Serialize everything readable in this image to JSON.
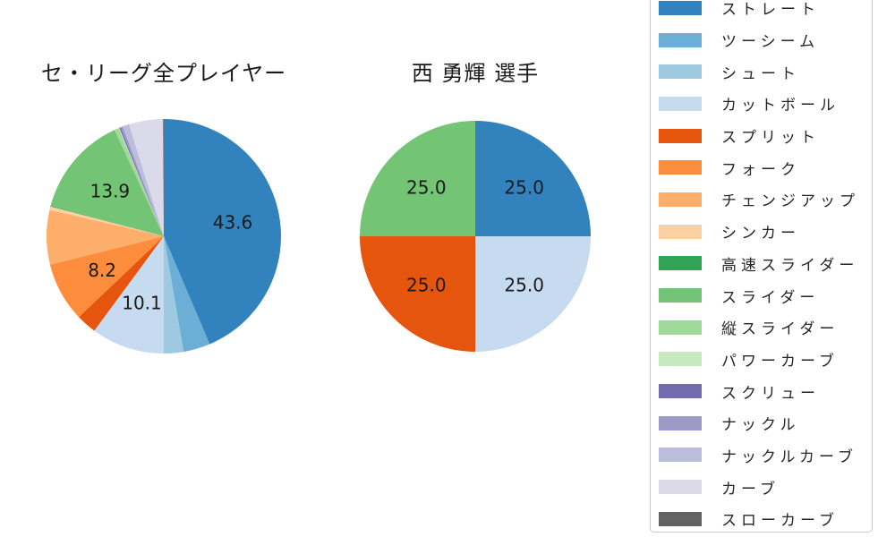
{
  "figure": {
    "background": "#ffffff"
  },
  "chart_data": [
    {
      "type": "pie",
      "title": "セ・リーグ全プレイヤー",
      "start_angle": "top",
      "direction": "clockwise",
      "label_threshold_pct": 8,
      "value_label_format": "one_decimal",
      "slices": [
        {
          "label": "ストレート",
          "value": 43.6,
          "color": "#3182bd"
        },
        {
          "label": "ツーシーム",
          "value": 3.7,
          "color": "#6baed6"
        },
        {
          "label": "シュート",
          "value": 2.7,
          "color": "#9ecae1"
        },
        {
          "label": "カットボール",
          "value": 10.1,
          "color": "#c6dbef"
        },
        {
          "label": "スプリット",
          "value": 2.8,
          "color": "#e6550d"
        },
        {
          "label": "フォーク",
          "value": 8.2,
          "color": "#fd8d3c"
        },
        {
          "label": "チェンジアップ",
          "value": 7.5,
          "color": "#fdae6b"
        },
        {
          "label": "シンカー",
          "value": 0.5,
          "color": "#fdd0a2"
        },
        {
          "label": "高速スライダー",
          "value": 0.1,
          "color": "#31a354"
        },
        {
          "label": "スライダー",
          "value": 13.9,
          "color": "#74c476"
        },
        {
          "label": "縦スライダー",
          "value": 0.6,
          "color": "#a1d99b"
        },
        {
          "label": "パワーカーブ",
          "value": 0.1,
          "color": "#c7e9c0"
        },
        {
          "label": "スクリュー",
          "value": 0.2,
          "color": "#756bb1"
        },
        {
          "label": "ナックル",
          "value": 0.3,
          "color": "#9e9ac8"
        },
        {
          "label": "ナックルカーブ",
          "value": 0.9,
          "color": "#bcbddc"
        },
        {
          "label": "カーブ",
          "value": 4.7,
          "color": "#dadaeb"
        },
        {
          "label": "スローカーブ",
          "value": 0.1,
          "color": "#636363"
        }
      ],
      "shown_value_labels": [
        "43.6",
        "10.1",
        "8.2",
        "13.9"
      ]
    },
    {
      "type": "pie",
      "title": "西 勇輝 選手",
      "start_angle": "top",
      "direction": "clockwise",
      "label_threshold_pct": 8,
      "value_label_format": "one_decimal",
      "slices": [
        {
          "label": "ストレート",
          "value": 25.0,
          "color": "#3182bd"
        },
        {
          "label": "カットボール",
          "value": 25.0,
          "color": "#c6dbef"
        },
        {
          "label": "スプリット",
          "value": 25.0,
          "color": "#e6550d"
        },
        {
          "label": "スライダー",
          "value": 25.0,
          "color": "#74c476"
        }
      ],
      "shown_value_labels": [
        "25.0",
        "25.0",
        "25.0",
        "25.0"
      ]
    }
  ],
  "legend": {
    "position": "right",
    "items": [
      {
        "label": "ストレート",
        "color": "#3182bd"
      },
      {
        "label": "ツーシーム",
        "color": "#6baed6"
      },
      {
        "label": "シュート",
        "color": "#9ecae1"
      },
      {
        "label": "カットボール",
        "color": "#c6dbef"
      },
      {
        "label": "スプリット",
        "color": "#e6550d"
      },
      {
        "label": "フォーク",
        "color": "#fd8d3c"
      },
      {
        "label": "チェンジアップ",
        "color": "#fdae6b"
      },
      {
        "label": "シンカー",
        "color": "#fdd0a2"
      },
      {
        "label": "高速スライダー",
        "color": "#31a354"
      },
      {
        "label": "スライダー",
        "color": "#74c476"
      },
      {
        "label": "縦スライダー",
        "color": "#a1d99b"
      },
      {
        "label": "パワーカーブ",
        "color": "#c7e9c0"
      },
      {
        "label": "スクリュー",
        "color": "#756bb1"
      },
      {
        "label": "ナックル",
        "color": "#9e9ac8"
      },
      {
        "label": "ナックルカーブ",
        "color": "#bcbddc"
      },
      {
        "label": "カーブ",
        "color": "#dadaeb"
      },
      {
        "label": "スローカーブ",
        "color": "#636363"
      }
    ]
  }
}
